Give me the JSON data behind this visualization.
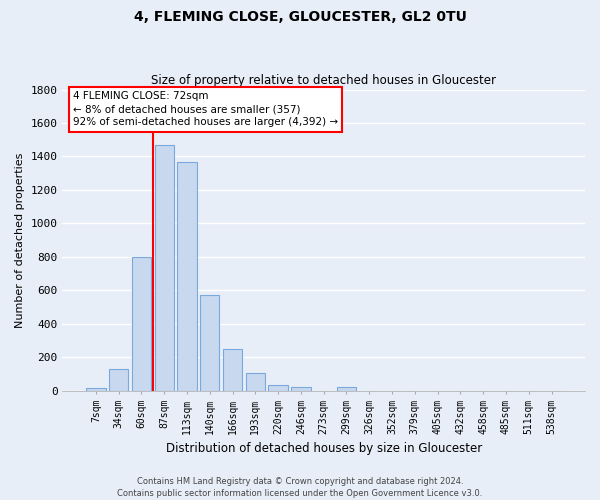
{
  "title": "4, FLEMING CLOSE, GLOUCESTER, GL2 0TU",
  "subtitle": "Size of property relative to detached houses in Gloucester",
  "xlabel": "Distribution of detached houses by size in Gloucester",
  "ylabel": "Number of detached properties",
  "bar_labels": [
    "7sqm",
    "34sqm",
    "60sqm",
    "87sqm",
    "113sqm",
    "140sqm",
    "166sqm",
    "193sqm",
    "220sqm",
    "246sqm",
    "273sqm",
    "299sqm",
    "326sqm",
    "352sqm",
    "379sqm",
    "405sqm",
    "432sqm",
    "458sqm",
    "485sqm",
    "511sqm",
    "538sqm"
  ],
  "bar_values": [
    15,
    130,
    800,
    1470,
    1370,
    575,
    250,
    105,
    35,
    20,
    0,
    20,
    0,
    0,
    0,
    0,
    0,
    0,
    0,
    0,
    0
  ],
  "bar_color": "#c8d8ee",
  "bar_edge_color": "#7aaadd",
  "ylim": [
    0,
    1800
  ],
  "yticks": [
    0,
    200,
    400,
    600,
    800,
    1000,
    1200,
    1400,
    1600,
    1800
  ],
  "vline_x": 2.5,
  "vline_color": "red",
  "box_text_line1": "4 FLEMING CLOSE: 72sqm",
  "box_text_line2": "← 8% of detached houses are smaller (357)",
  "box_text_line3": "92% of semi-detached houses are larger (4,392) →",
  "box_color": "white",
  "box_edge_color": "red",
  "footnote1": "Contains HM Land Registry data © Crown copyright and database right 2024.",
  "footnote2": "Contains public sector information licensed under the Open Government Licence v3.0.",
  "background_color": "#e8eef8",
  "grid_color": "white"
}
